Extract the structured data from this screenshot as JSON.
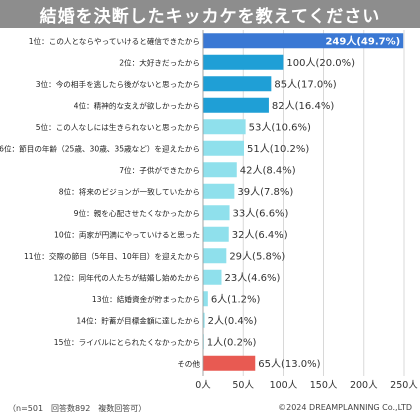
{
  "chart_data": {
    "type": "bar",
    "orientation": "horizontal",
    "title": "結婚を決断したキッカケを教えてください",
    "categories": [
      "1位：この人とならやっていけると確信できたから",
      "2位：大好きだったから",
      "3位：今の相手を逃したら後がないと思ったから",
      "4位：精神的な支えが欲しかったから",
      "5位：この人なしには生きられないと思ったから",
      "6位：節目の年齢（25歳、30歳、35歳など）を迎えたから",
      "7位：子供ができたから",
      "8位：将来のビジョンが一致していたから",
      "9位：親を心配させたくなかったから",
      "10位：両家が円満にやっていけると思った",
      "11位：交際の節目（5年目、10年目）を迎えたから",
      "12位：同年代の人たちが結婚し始めたから",
      "13位：結婚資金が貯まったから",
      "14位：貯蓄が目標金額に達したから",
      "15位：ライバルにとられたくなかったから",
      "その他"
    ],
    "values": [
      249,
      100,
      85,
      82,
      53,
      51,
      42,
      39,
      33,
      32,
      29,
      23,
      6,
      2,
      1,
      65
    ],
    "value_labels": [
      "249人(49.7%)",
      "100人(20.0%)",
      "85人(17.0%)",
      "82人(16.4%)",
      "53人(10.6%)",
      "51人(10.2%)",
      "42人(8.4%)",
      "39人(7.8%)",
      "33人(6.6%)",
      "32人(6.4%)",
      "29人(5.8%)",
      "23人(4.6%)",
      "6人(1.2%)",
      "2人(0.4%)",
      "1人(0.2%)",
      "65人(13.0%)"
    ],
    "xlim": [
      0,
      250
    ],
    "xticks": [
      "0人",
      "50人",
      "100人",
      "150人",
      "200人",
      "250人"
    ],
    "grid": true,
    "legend": "none",
    "colors": {
      "top": "#3a78d4",
      "second_group": "#1f9fd6",
      "rest": "#8fe0ec",
      "other": "#e85a52",
      "grid": "#cfcfcf",
      "title_bg": "#8d8d8d"
    }
  },
  "footer": {
    "note": "（n=501　回答数892　複数回答可）",
    "credit": "©2024 DREAMPLANNING Co.,LTD"
  }
}
